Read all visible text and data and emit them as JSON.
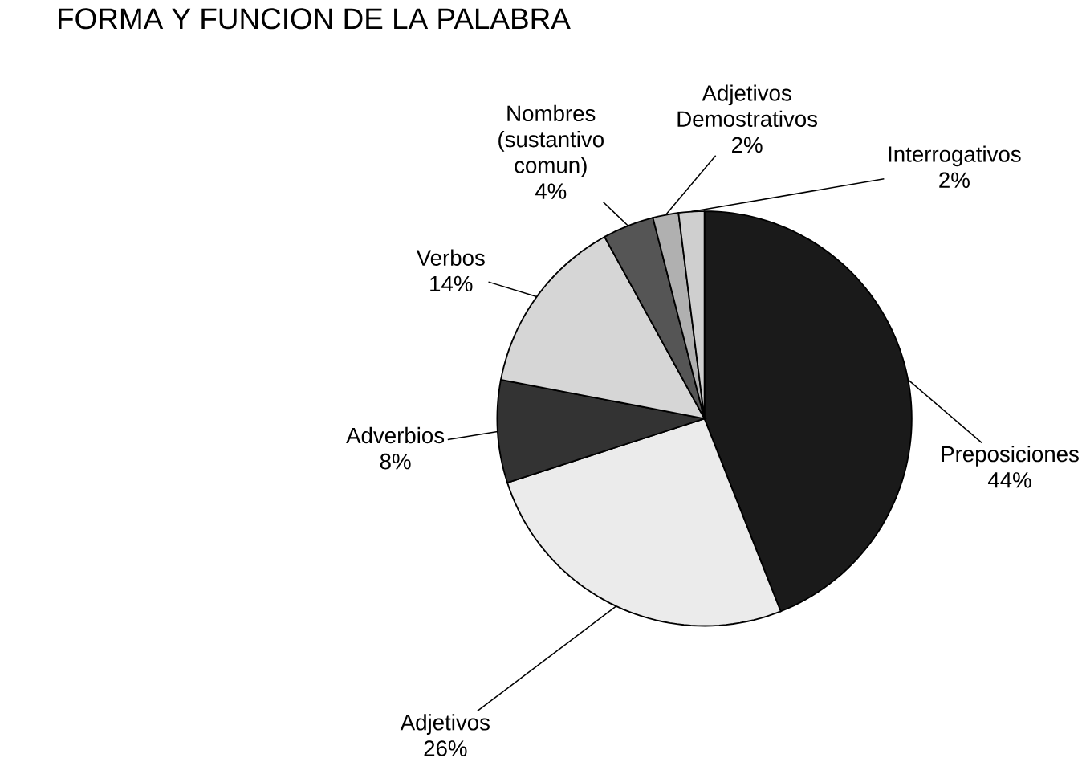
{
  "chart_data": {
    "type": "pie",
    "title": "FORMA Y FUNCION DE LA PALABRA",
    "categories": [
      "Preposiciones",
      "Adjetivos",
      "Adverbios",
      "Verbos",
      "Nombres (sustantivo comun)",
      "Adjetivos Demostrativos",
      "Interrogativos"
    ],
    "values": [
      44,
      26,
      8,
      14,
      4,
      2,
      2
    ],
    "value_labels": [
      "44%",
      "26%",
      "8%",
      "14%",
      "4%",
      "2%",
      "2%"
    ],
    "colors": [
      "#1a1a1a",
      "#ebebeb",
      "#333333",
      "#d6d6d6",
      "#555555",
      "#b0b0b0",
      "#cfcfcf"
    ]
  }
}
